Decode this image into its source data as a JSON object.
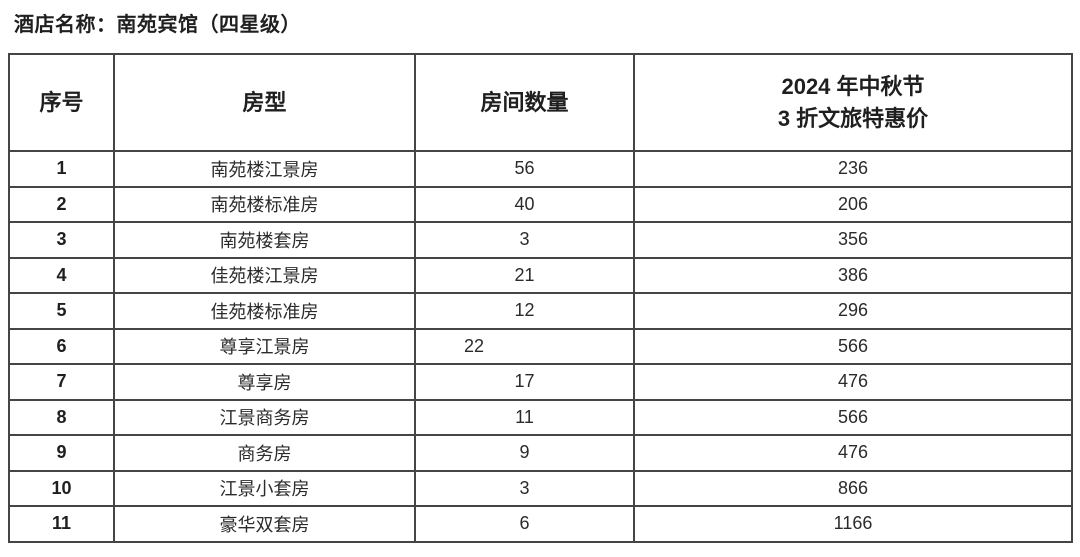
{
  "title": "酒店名称：南苑宾馆（四星级）",
  "table": {
    "headers": {
      "serial": "序号",
      "room_type": "房型",
      "quantity": "房间数量",
      "price_line1": "2024 年中秋节",
      "price_line2": "3 折文旅特惠价"
    },
    "rows": [
      {
        "serial": "1",
        "room_type": "南苑楼江景房",
        "quantity": "56",
        "price": "236"
      },
      {
        "serial": "2",
        "room_type": "南苑楼标准房",
        "quantity": "40",
        "price": "206"
      },
      {
        "serial": "3",
        "room_type": "南苑楼套房",
        "quantity": "3",
        "price": "356"
      },
      {
        "serial": "4",
        "room_type": "佳苑楼江景房",
        "quantity": "21",
        "price": "386"
      },
      {
        "serial": "5",
        "room_type": "佳苑楼标准房",
        "quantity": "12",
        "price": "296"
      },
      {
        "serial": "6",
        "room_type": "尊享江景房",
        "quantity": "22",
        "price": "566"
      },
      {
        "serial": "7",
        "room_type": "尊享房",
        "quantity": "17",
        "price": "476"
      },
      {
        "serial": "8",
        "room_type": "江景商务房",
        "quantity": "11",
        "price": "566"
      },
      {
        "serial": "9",
        "room_type": "商务房",
        "quantity": "9",
        "price": "476"
      },
      {
        "serial": "10",
        "room_type": "江景小套房",
        "quantity": "3",
        "price": "866"
      },
      {
        "serial": "11",
        "room_type": "豪华双套房",
        "quantity": "6",
        "price": "1166"
      }
    ]
  },
  "colors": {
    "background": "#ffffff",
    "text": "#2b2b2b",
    "border": "#454545"
  }
}
